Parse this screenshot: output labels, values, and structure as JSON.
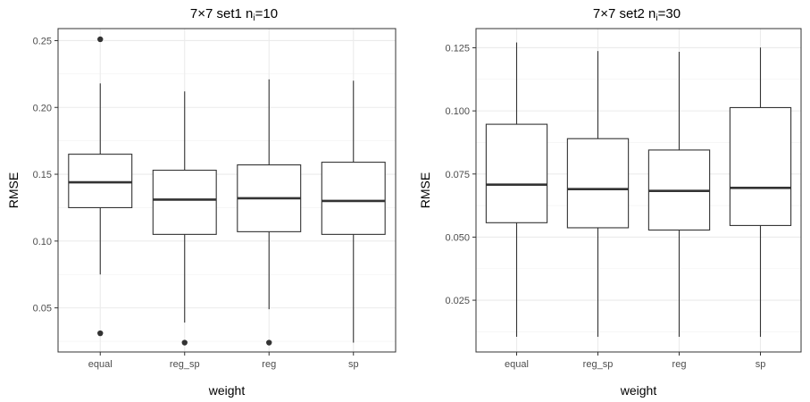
{
  "chart_data": [
    {
      "type": "boxplot",
      "title_main": "7×7 set1 n",
      "title_sub": "i",
      "title_tail": "=10",
      "xlabel": "weight",
      "ylabel": "RMSE",
      "categories": [
        "equal",
        "reg_sp",
        "reg",
        "sp"
      ],
      "ylim": [
        0.017,
        0.259
      ],
      "yticks": [
        0.05,
        0.1,
        0.15,
        0.2,
        0.25
      ],
      "ytick_labels": [
        "0.05",
        "0.10",
        "0.15",
        "0.20",
        "0.25"
      ],
      "grid": true,
      "boxes": [
        {
          "category": "equal",
          "whisker_low": 0.075,
          "q1": 0.125,
          "median": 0.144,
          "q3": 0.165,
          "whisker_high": 0.218,
          "outliers": [
            0.251,
            0.031
          ]
        },
        {
          "category": "reg_sp",
          "whisker_low": 0.039,
          "q1": 0.105,
          "median": 0.131,
          "q3": 0.153,
          "whisker_high": 0.212,
          "outliers": [
            0.024
          ]
        },
        {
          "category": "reg",
          "whisker_low": 0.049,
          "q1": 0.107,
          "median": 0.132,
          "q3": 0.157,
          "whisker_high": 0.221,
          "outliers": [
            0.024
          ]
        },
        {
          "category": "sp",
          "whisker_low": 0.024,
          "q1": 0.105,
          "median": 0.13,
          "q3": 0.159,
          "whisker_high": 0.22,
          "outliers": []
        }
      ]
    },
    {
      "type": "boxplot",
      "title_main": "7×7 set2 n",
      "title_sub": "i",
      "title_tail": "=30",
      "xlabel": "weight",
      "ylabel": "RMSE",
      "categories": [
        "equal",
        "reg_sp",
        "reg",
        "sp"
      ],
      "ylim": [
        0.0045,
        0.1326
      ],
      "yticks": [
        0.025,
        0.05,
        0.075,
        0.1,
        0.125
      ],
      "ytick_labels": [
        "0.025",
        "0.050",
        "0.075",
        "0.100",
        "0.125"
      ],
      "grid": true,
      "boxes": [
        {
          "category": "equal",
          "whisker_low": 0.0105,
          "q1": 0.0557,
          "median": 0.0708,
          "q3": 0.0947,
          "whisker_high": 0.1271,
          "outliers": []
        },
        {
          "category": "reg_sp",
          "whisker_low": 0.0105,
          "q1": 0.0537,
          "median": 0.069,
          "q3": 0.089,
          "whisker_high": 0.1237,
          "outliers": []
        },
        {
          "category": "reg",
          "whisker_low": 0.0105,
          "q1": 0.0528,
          "median": 0.0683,
          "q3": 0.0845,
          "whisker_high": 0.1234,
          "outliers": []
        },
        {
          "category": "sp",
          "whisker_low": 0.0105,
          "q1": 0.0546,
          "median": 0.0695,
          "q3": 0.1013,
          "whisker_high": 0.1251,
          "outliers": []
        }
      ]
    }
  ]
}
